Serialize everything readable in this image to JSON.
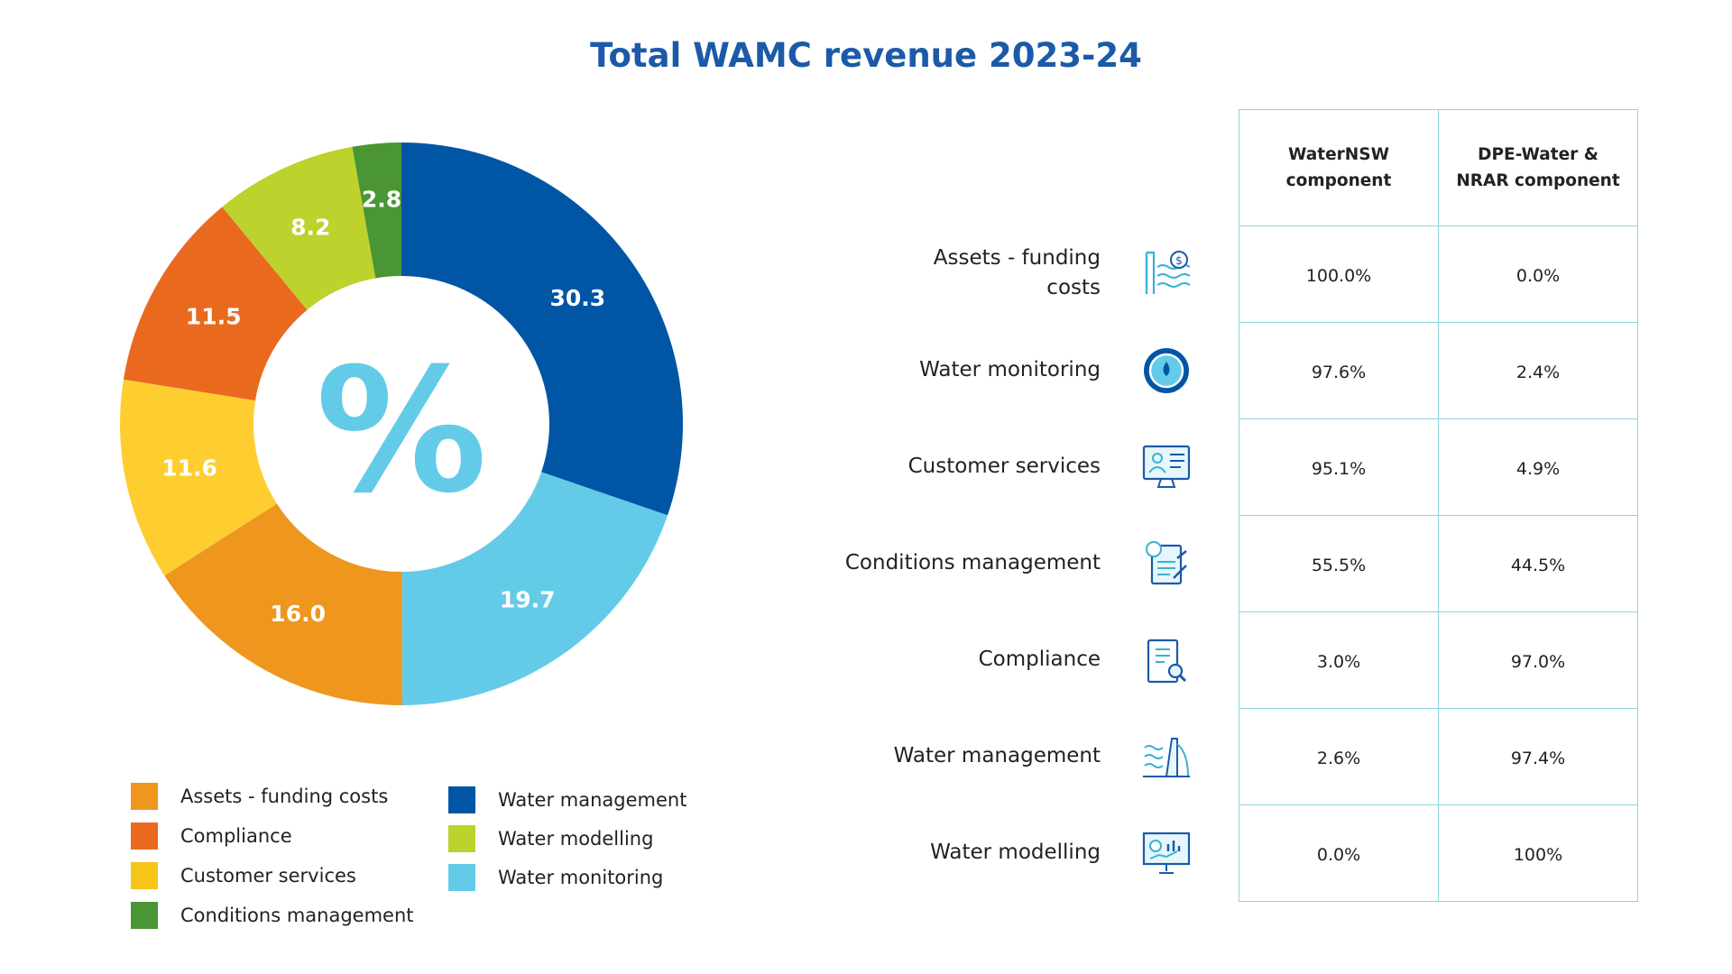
{
  "title": "Total WAMC revenue 2023-24",
  "center_glyph": "%",
  "chart_data": {
    "type": "pie",
    "donut": true,
    "title": "Total WAMC revenue 2023-24",
    "slices": [
      {
        "name": "Water management",
        "value": 30.3,
        "label": "30.3",
        "color": "#0055a5"
      },
      {
        "name": "Water monitoring",
        "value": 19.7,
        "label": "19.7",
        "color": "#63cbe8"
      },
      {
        "name": "Assets - funding costs",
        "value": 16.0,
        "label": "16.0",
        "color": "#ee961e"
      },
      {
        "name": "Customer services",
        "value": 11.6,
        "label": "11.6",
        "color": "#fece31"
      },
      {
        "name": "Compliance",
        "value": 11.5,
        "label": "11.5",
        "color": "#e96a1e"
      },
      {
        "name": "Water modelling",
        "value": 8.2,
        "label": "8.2",
        "color": "#bdd22c"
      },
      {
        "name": "Conditions management",
        "value": 2.8,
        "label": "2.8",
        "color": "#4a9534"
      }
    ],
    "legend_placement": "bottom"
  },
  "legend": [
    {
      "label": "Assets - funding costs",
      "color": "#ee961e"
    },
    {
      "label": "Compliance",
      "color": "#e96a1e"
    },
    {
      "label": "Customer services",
      "color": "#f5c518"
    },
    {
      "label": "Conditions management",
      "color": "#4a9534"
    },
    {
      "label": "Water management",
      "color": "#0055a5"
    },
    {
      "label": "Water modelling",
      "color": "#bdd22c"
    },
    {
      "label": "Water monitoring",
      "color": "#63cbe8"
    }
  ],
  "table": {
    "headers": [
      "WaterNSW component",
      "DPE-Water & NRAR component"
    ],
    "rows": [
      {
        "label": "Assets - funding costs",
        "icon": "dam-dollar-icon",
        "waternsw": "100.0%",
        "dpe": "0.0%"
      },
      {
        "label": "Water monitoring",
        "icon": "water-drop-gauge-icon",
        "waternsw": "97.6%",
        "dpe": "2.4%"
      },
      {
        "label": "Customer services",
        "icon": "computer-user-icon",
        "waternsw": "95.1%",
        "dpe": "4.9%"
      },
      {
        "label": "Conditions management",
        "icon": "document-check-icon",
        "waternsw": "55.5%",
        "dpe": "44.5%"
      },
      {
        "label": "Compliance",
        "icon": "clipboard-search-icon",
        "waternsw": "3.0%",
        "dpe": "97.0%"
      },
      {
        "label": "Water management",
        "icon": "dam-waves-icon",
        "waternsw": "2.6%",
        "dpe": "97.4%"
      },
      {
        "label": "Water modelling",
        "icon": "presentation-chart-icon",
        "waternsw": "0.0%",
        "dpe": "100%"
      }
    ]
  }
}
